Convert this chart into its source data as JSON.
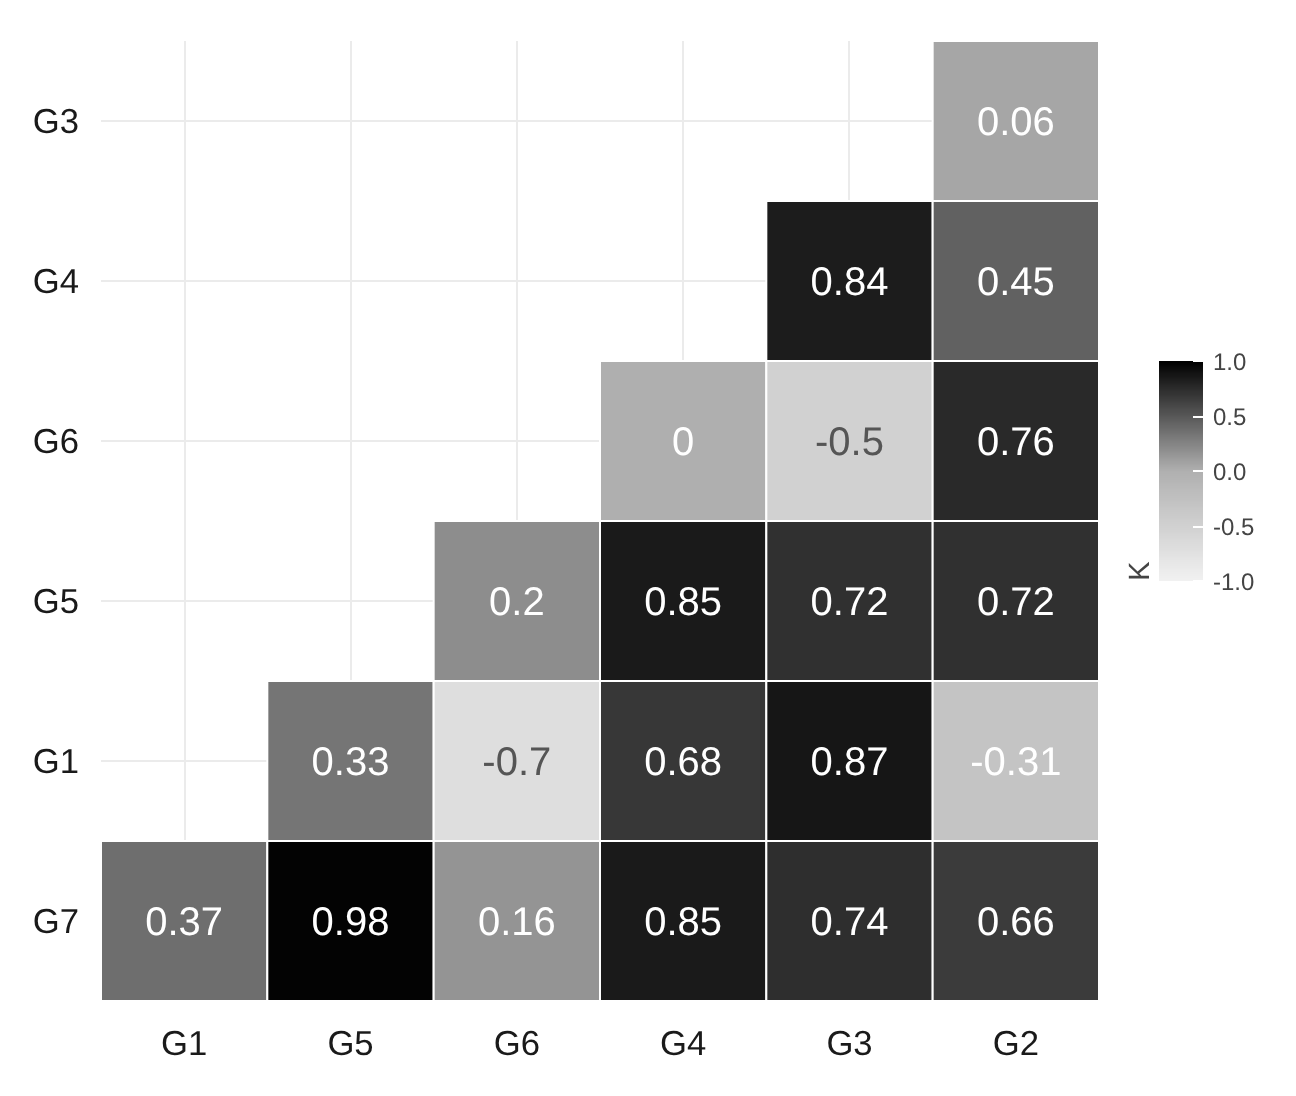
{
  "chart_data": {
    "type": "heatmap",
    "clabel": "K",
    "categories": [
      "G1",
      "G5",
      "G6",
      "G4",
      "G3",
      "G2"
    ],
    "y_categories": [
      "G3",
      "G4",
      "G6",
      "G5",
      "G1",
      "G7"
    ],
    "cells": [
      [
        null,
        null,
        null,
        null,
        null,
        0.06
      ],
      [
        null,
        null,
        null,
        null,
        0.84,
        0.45
      ],
      [
        null,
        null,
        null,
        0,
        -0.5,
        0.76
      ],
      [
        null,
        null,
        0.2,
        0.85,
        0.72,
        0.72
      ],
      [
        null,
        0.33,
        -0.7,
        0.68,
        0.87,
        -0.31
      ],
      [
        0.37,
        0.98,
        0.16,
        0.85,
        0.74,
        0.66
      ]
    ],
    "clim": [
      -1,
      1
    ],
    "cticks": [
      {
        "value": -1,
        "label": "-1.0"
      },
      {
        "value": -0.5,
        "label": "-0.5"
      },
      {
        "value": 0,
        "label": "0.0"
      },
      {
        "value": 0.5,
        "label": "0.5"
      },
      {
        "value": 1,
        "label": "1.0"
      }
    ],
    "data_labels": true,
    "grid": true
  }
}
